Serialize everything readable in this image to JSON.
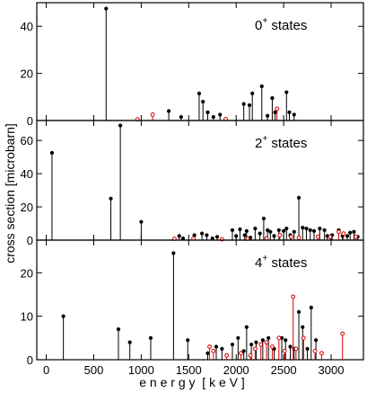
{
  "figure": {
    "xlabel": "e n e r g y  [ k e V ]",
    "ylabel": "cross section  [microbarn]"
  },
  "chart_data": [
    {
      "type": "bar",
      "title": "0+ states",
      "title_main": "0",
      "title_sup": "+",
      "title_rest": " states",
      "xlim": [
        -100,
        3340
      ],
      "ylim": [
        0,
        50
      ],
      "yticks": [
        0,
        20,
        40
      ],
      "grid": false,
      "series": [
        {
          "color": "#000000",
          "marker": "filled-dot",
          "points": [
            [
              630,
              47.5
            ],
            [
              1290,
              4.0
            ],
            [
              1420,
              1.5
            ],
            [
              1610,
              11.5
            ],
            [
              1650,
              8.0
            ],
            [
              1700,
              3.5
            ],
            [
              1760,
              1.5
            ],
            [
              1830,
              2.5
            ],
            [
              2080,
              7.0
            ],
            [
              2140,
              6.5
            ],
            [
              2170,
              11.5
            ],
            [
              2270,
              14.5
            ],
            [
              2330,
              2.0
            ],
            [
              2380,
              9.5
            ],
            [
              2410,
              3.5
            ],
            [
              2530,
              12.0
            ],
            [
              2560,
              3.5
            ],
            [
              2610,
              2.5
            ]
          ]
        },
        {
          "color": "#d40000",
          "marker": "open-circle",
          "points": [
            [
              960,
              0.5
            ],
            [
              1120,
              2.5
            ],
            [
              1890,
              0.6
            ],
            [
              2430,
              5.0
            ]
          ]
        }
      ]
    },
    {
      "type": "bar",
      "title": "2+ states",
      "title_main": "2",
      "title_sup": "+",
      "title_rest": "  states",
      "xlim": [
        -100,
        3340
      ],
      "ylim": [
        0,
        72
      ],
      "yticks": [
        0,
        20,
        40,
        60
      ],
      "grid": false,
      "series": [
        {
          "color": "#000000",
          "marker": "filled-dot",
          "points": [
            [
              60,
              52.5
            ],
            [
              680,
              25.0
            ],
            [
              780,
              69.0
            ],
            [
              1000,
              11.0
            ],
            [
              1400,
              2.5
            ],
            [
              1440,
              1.0
            ],
            [
              1560,
              3.0
            ],
            [
              1640,
              4.0
            ],
            [
              1690,
              3.0
            ],
            [
              1750,
              1.0
            ],
            [
              1800,
              2.0
            ],
            [
              1960,
              6.0
            ],
            [
              2000,
              2.5
            ],
            [
              2040,
              6.5
            ],
            [
              2090,
              3.0
            ],
            [
              2110,
              5.5
            ],
            [
              2150,
              1.5
            ],
            [
              2200,
              7.0
            ],
            [
              2250,
              4.0
            ],
            [
              2290,
              13.0
            ],
            [
              2330,
              6.0
            ],
            [
              2360,
              5.0
            ],
            [
              2400,
              2.5
            ],
            [
              2450,
              6.0
            ],
            [
              2500,
              5.5
            ],
            [
              2530,
              7.0
            ],
            [
              2570,
              3.0
            ],
            [
              2610,
              5.0
            ],
            [
              2660,
              25.5
            ],
            [
              2700,
              7.5
            ],
            [
              2740,
              7.0
            ],
            [
              2780,
              6.0
            ],
            [
              2820,
              5.5
            ],
            [
              2880,
              7.0
            ],
            [
              2930,
              6.0
            ],
            [
              2960,
              2.5
            ],
            [
              3010,
              3.0
            ],
            [
              3080,
              6.0
            ],
            [
              3120,
              2.5
            ],
            [
              3170,
              2.5
            ],
            [
              3200,
              4.5
            ],
            [
              3240,
              5.0
            ],
            [
              3280,
              2.0
            ]
          ]
        },
        {
          "color": "#d40000",
          "marker": "open-circle",
          "points": [
            [
              1350,
              0.8
            ],
            [
              1550,
              1.0
            ],
            [
              1850,
              0.5
            ],
            [
              2120,
              0.8
            ],
            [
              2320,
              1.0
            ],
            [
              2460,
              3.0
            ],
            [
              2580,
              2.0
            ],
            [
              2660,
              1.5
            ],
            [
              2860,
              2.0
            ],
            [
              2990,
              2.0
            ],
            [
              3080,
              5.0
            ],
            [
              3130,
              4.0
            ],
            [
              3260,
              2.0
            ]
          ]
        }
      ]
    },
    {
      "type": "bar",
      "title": "4+ states",
      "title_main": "4",
      "title_sup": "+",
      "title_rest": " states",
      "xlim": [
        -100,
        3340
      ],
      "ylim": [
        0,
        27.5
      ],
      "yticks": [
        0,
        10,
        20
      ],
      "xticks": [
        0,
        500,
        1000,
        1500,
        2000,
        2500,
        3000
      ],
      "grid": false,
      "series": [
        {
          "color": "#000000",
          "marker": "filled-dot",
          "points": [
            [
              180,
              10.0
            ],
            [
              760,
              7.0
            ],
            [
              880,
              4.0
            ],
            [
              1100,
              5.0
            ],
            [
              1340,
              24.5
            ],
            [
              1490,
              4.5
            ],
            [
              1700,
              1.5
            ],
            [
              1790,
              3.0
            ],
            [
              1850,
              2.5
            ],
            [
              1960,
              3.5
            ],
            [
              2020,
              5.0
            ],
            [
              2080,
              2.0
            ],
            [
              2110,
              7.5
            ],
            [
              2160,
              3.5
            ],
            [
              2210,
              4.0
            ],
            [
              2280,
              4.5
            ],
            [
              2340,
              5.0
            ],
            [
              2400,
              2.5
            ],
            [
              2480,
              5.0
            ],
            [
              2520,
              4.5
            ],
            [
              2570,
              3.0
            ],
            [
              2610,
              2.5
            ],
            [
              2660,
              11.0
            ],
            [
              2700,
              7.5
            ],
            [
              2750,
              2.5
            ],
            [
              2790,
              12.0
            ],
            [
              2840,
              4.5
            ]
          ]
        },
        {
          "color": "#d40000",
          "marker": "open-circle",
          "points": [
            [
              1720,
              3.0
            ],
            [
              1760,
              2.0
            ],
            [
              1900,
              1.0
            ],
            [
              2050,
              1.5
            ],
            [
              2150,
              1.0
            ],
            [
              2200,
              2.5
            ],
            [
              2260,
              3.5
            ],
            [
              2320,
              4.0
            ],
            [
              2380,
              3.0
            ],
            [
              2450,
              5.0
            ],
            [
              2510,
              2.0
            ],
            [
              2600,
              14.5
            ],
            [
              2630,
              2.5
            ],
            [
              2710,
              5.0
            ],
            [
              2830,
              2.0
            ],
            [
              2900,
              1.5
            ],
            [
              3120,
              6.0
            ]
          ]
        }
      ]
    }
  ]
}
